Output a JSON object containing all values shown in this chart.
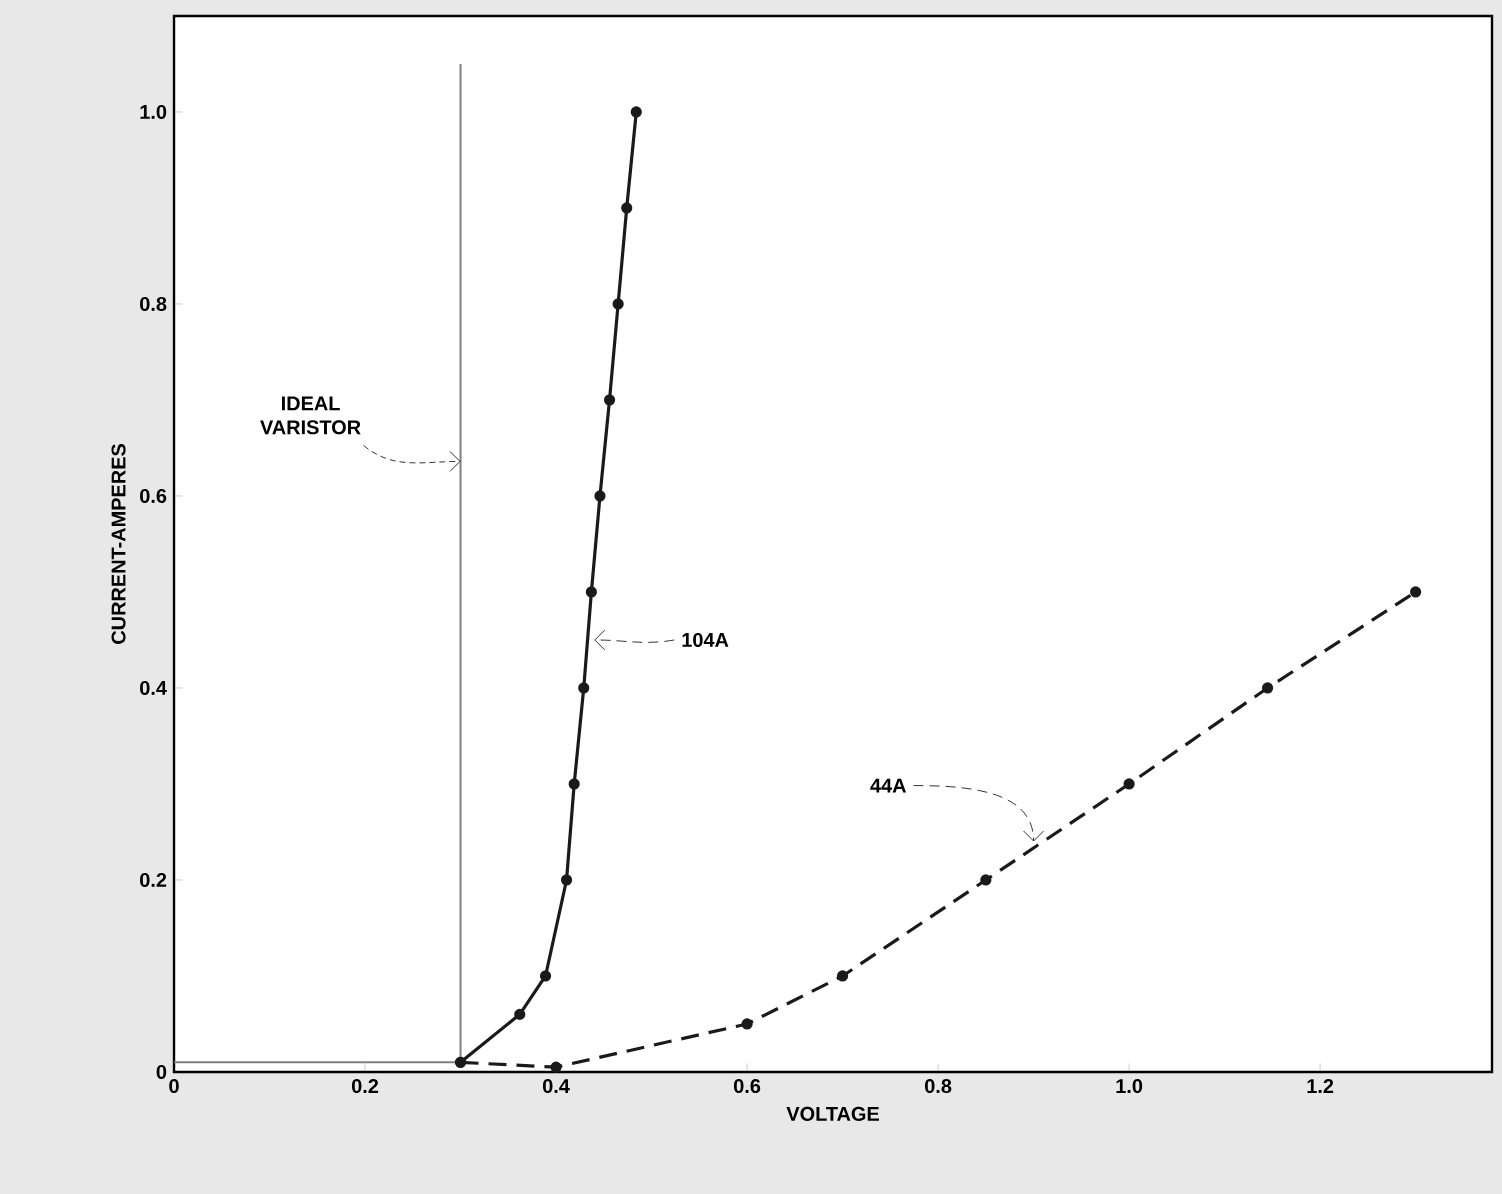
{
  "chart_data": {
    "type": "line",
    "xlabel": "VOLTAGE",
    "ylabel": "CURRENT-AMPERES",
    "xlim": [
      0,
      1.38
    ],
    "ylim": [
      0,
      1.1
    ],
    "xticks": [
      0,
      0.2,
      0.4,
      0.6,
      0.8,
      {
        "value": 1,
        "label": "1.0"
      },
      1.2
    ],
    "yticks": [
      0,
      0.2,
      0.4,
      0.6,
      0.8,
      {
        "value": 1,
        "label": "1.0"
      }
    ],
    "grid": false,
    "legend": false,
    "series": [
      {
        "name": "IDEAL VARISTOR",
        "color": "#808080",
        "marker": "none",
        "line_style": "solid",
        "x": [
          0,
          0.3,
          0.3
        ],
        "values": [
          0.01,
          0.01,
          1.05
        ]
      },
      {
        "color": "#1a1a1a",
        "marker": "circle",
        "line_style": "solid",
        "x": [
          0.3,
          0.362,
          0.389,
          0.411,
          0.419,
          0.429,
          0.437,
          0.446,
          0.456,
          0.465,
          0.474,
          0.484
        ],
        "values": [
          0.01,
          0.06,
          0.1,
          0.2,
          0.3,
          0.4,
          0.5,
          0.6,
          0.7,
          0.8,
          0.9,
          1.0
        ]
      },
      {
        "color": "#1a1a1a",
        "marker": "circle",
        "line_style": "dashed",
        "x": [
          0.3,
          0.4,
          0.6,
          0.7,
          0.85,
          1.0,
          1.145,
          1.3
        ],
        "values": [
          0.01,
          0.005,
          0.05,
          0.1,
          0.2,
          0.3,
          0.4,
          0.5
        ]
      }
    ],
    "annotations": [
      {
        "text": "104A",
        "x": 0.44,
        "y": 0.45
      },
      {
        "text": "44A",
        "x": 0.9,
        "y": 0.24
      }
    ]
  }
}
